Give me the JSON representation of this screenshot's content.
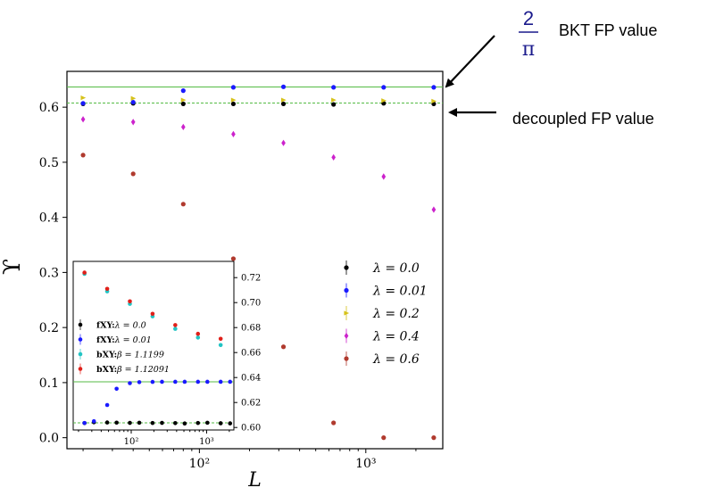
{
  "colors": {
    "black": "#000000",
    "blue": "#1a1aff",
    "yellow": "#d6c21a",
    "magenta": "#cc22cc",
    "brown": "#b03a2e",
    "cyan": "#22c4c4",
    "red": "#e0201a",
    "green": "#55bb44",
    "navy": "#1a1a8c"
  },
  "annotations": {
    "bkt_num": "2",
    "bkt_den": "π",
    "bkt_label": "BKT FP value",
    "decoupled_label": "decoupled FP value"
  },
  "chart_data": [
    {
      "type": "scatter",
      "xlabel": "L",
      "ylabel": "ϒ",
      "xscale": "log",
      "xlim": [
        16,
        2900
      ],
      "ylim": [
        -0.02,
        0.665
      ],
      "yticks": [
        "0.0",
        "0.1",
        "0.2",
        "0.3",
        "0.4",
        "0.5",
        "0.6"
      ],
      "xticks": [
        "10²",
        "10³"
      ],
      "grid": false,
      "legend": "right-middle",
      "reference_lines": [
        {
          "y": 0.6366,
          "style": "solid",
          "color": "green"
        },
        {
          "y": 0.6075,
          "style": "dashed",
          "color": "green"
        }
      ],
      "series": [
        {
          "name": "λ = 0.0",
          "color": "black",
          "marker": "circle",
          "x": [
            20,
            40,
            80,
            160,
            320,
            640,
            1280,
            2560
          ],
          "y": [
            0.606,
            0.607,
            0.606,
            0.606,
            0.606,
            0.605,
            0.607,
            0.606
          ]
        },
        {
          "name": "λ = 0.01",
          "color": "blue",
          "marker": "circle",
          "x": [
            20,
            40,
            80,
            160,
            320,
            640,
            1280,
            2560
          ],
          "y": [
            0.607,
            0.609,
            0.63,
            0.636,
            0.637,
            0.636,
            0.636,
            0.636
          ]
        },
        {
          "name": "λ = 0.2",
          "color": "yellow",
          "marker": "triangle-right",
          "x": [
            20,
            40,
            80,
            160,
            320,
            640,
            1280,
            2560
          ],
          "y": [
            0.617,
            0.616,
            0.613,
            0.613,
            0.613,
            0.613,
            0.612,
            0.611
          ]
        },
        {
          "name": "λ = 0.4",
          "color": "magenta",
          "marker": "diamond",
          "x": [
            20,
            40,
            80,
            160,
            320,
            640,
            1280,
            2560
          ],
          "y": [
            0.578,
            0.573,
            0.564,
            0.551,
            0.535,
            0.509,
            0.474,
            0.414
          ]
        },
        {
          "name": "λ = 0.6",
          "color": "brown",
          "marker": "circle",
          "x": [
            20,
            40,
            80,
            160,
            320,
            640,
            1280,
            2560
          ],
          "y": [
            0.513,
            0.479,
            0.424,
            0.325,
            0.165,
            0.027,
            0.0,
            0.0
          ]
        }
      ]
    },
    {
      "type": "scatter",
      "xscale": "log",
      "xlim": [
        17,
        2300
      ],
      "ylim": [
        0.598,
        0.733
      ],
      "yticks": [
        "0.60",
        "0.62",
        "0.64",
        "0.66",
        "0.68",
        "0.70",
        "0.72"
      ],
      "xticks": [
        "10²",
        "10³"
      ],
      "legend": "left-middle",
      "reference_lines": [
        {
          "y": 0.6366,
          "style": "solid",
          "color": "green"
        },
        {
          "y": 0.6037,
          "style": "dashed",
          "color": "green"
        }
      ],
      "series": [
        {
          "name": "fXY:λ = 0.0",
          "color": "black",
          "marker": "circle",
          "x": [
            24,
            32,
            48,
            64,
            96,
            128,
            192,
            256,
            384,
            512,
            768,
            1024,
            1536,
            2048
          ],
          "y": [
            0.6035,
            0.6042,
            0.604,
            0.6039,
            0.6037,
            0.6038,
            0.6036,
            0.6037,
            0.6035,
            0.6032,
            0.6036,
            0.6038,
            0.6034,
            0.6033
          ]
        },
        {
          "name": "fXY:λ = 0.01",
          "color": "blue",
          "marker": "circle",
          "x": [
            24,
            32,
            48,
            64,
            96,
            128,
            192,
            256,
            384,
            512,
            768,
            1024,
            1536,
            2048
          ],
          "y": [
            0.6036,
            0.605,
            0.618,
            0.631,
            0.6355,
            0.6363,
            0.6365,
            0.6366,
            0.6366,
            0.6366,
            0.6366,
            0.6366,
            0.6366,
            0.6366
          ]
        },
        {
          "name": "bXY:β = 1.1199",
          "color": "cyan",
          "marker": "circle",
          "x": [
            24,
            48,
            96,
            192,
            384,
            768,
            1536
          ],
          "y": [
            0.723,
            0.709,
            0.699,
            0.689,
            0.679,
            0.672,
            0.666
          ]
        },
        {
          "name": "bXY:β = 1.12091",
          "color": "red",
          "marker": "circle",
          "x": [
            24,
            48,
            96,
            192,
            384,
            768,
            1536
          ],
          "y": [
            0.724,
            0.711,
            0.701,
            0.691,
            0.682,
            0.675,
            0.671
          ]
        }
      ]
    }
  ]
}
